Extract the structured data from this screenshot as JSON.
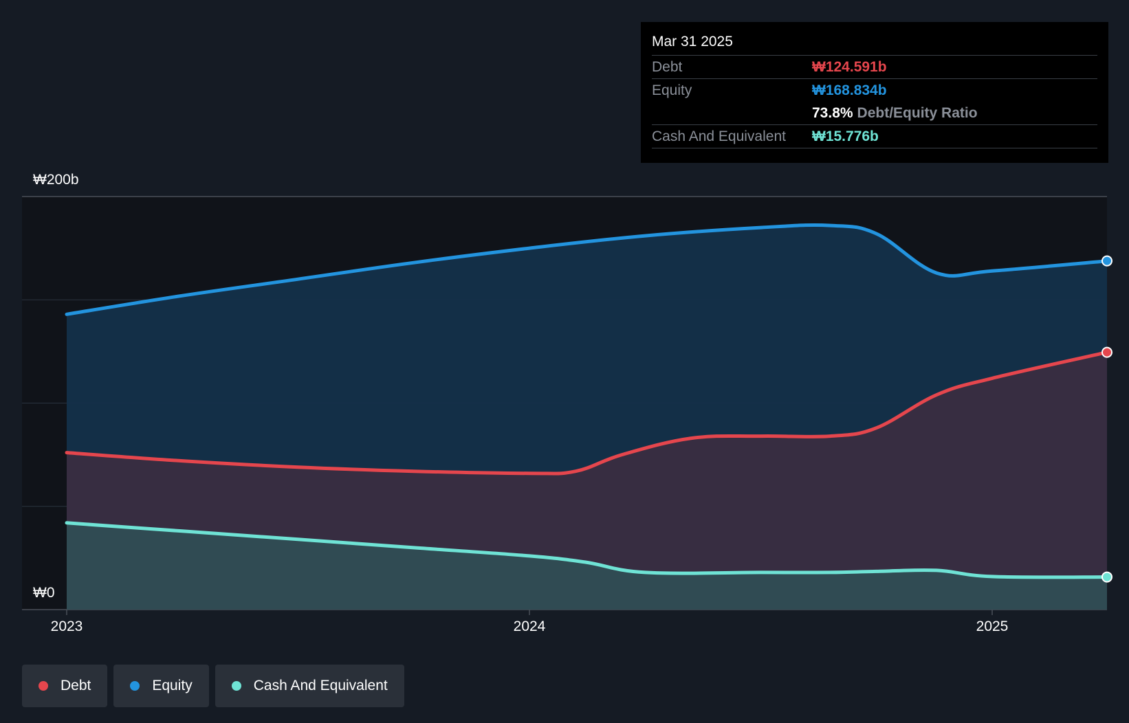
{
  "tooltip": {
    "date": "Mar 31 2025",
    "rows": [
      {
        "label": "Debt",
        "value": "₩124.591b",
        "color": "#e5464d"
      },
      {
        "label": "Equity",
        "value": "₩168.834b",
        "color": "#2394df"
      }
    ],
    "ratio_value": "73.8%",
    "ratio_label": "Debt/Equity Ratio",
    "cash_label": "Cash And Equivalent",
    "cash_value": "₩15.776b",
    "cash_color": "#6fe3d5"
  },
  "axis": {
    "y_top_label": "₩200b",
    "y_bottom_label": "₩0",
    "x_labels": [
      {
        "label": "2023",
        "t": 2023.0
      },
      {
        "label": "2024",
        "t": 2024.0
      },
      {
        "label": "2025",
        "t": 2025.0
      }
    ]
  },
  "legend": [
    {
      "label": "Debt",
      "color": "#e5464d"
    },
    {
      "label": "Equity",
      "color": "#2394df"
    },
    {
      "label": "Cash And Equivalent",
      "color": "#6fe3d5"
    }
  ],
  "chart_data": {
    "type": "area",
    "title": "",
    "xlabel": "",
    "ylabel": "",
    "ylim": [
      0,
      200
    ],
    "xlim": [
      2022.9,
      2025.25
    ],
    "grid": true,
    "y_unit": "₩b",
    "series": [
      {
        "name": "Equity",
        "color": "#2394df",
        "fill": "#14304a",
        "x": [
          2023.0,
          2023.25,
          2023.5,
          2023.75,
          2024.0,
          2024.25,
          2024.5,
          2024.65,
          2024.75,
          2024.88,
          2025.0,
          2025.25
        ],
        "y": [
          143,
          152,
          160,
          168,
          175,
          181,
          185,
          186,
          182,
          163,
          164,
          168.834
        ]
      },
      {
        "name": "Debt",
        "color": "#e5464d",
        "fill": "#392d41",
        "x": [
          2023.0,
          2023.25,
          2023.5,
          2023.75,
          2024.0,
          2024.1,
          2024.2,
          2024.35,
          2024.5,
          2024.65,
          2024.75,
          2024.88,
          2025.0,
          2025.25
        ],
        "y": [
          76,
          72,
          69,
          67,
          66,
          67,
          75,
          83,
          84,
          84,
          88,
          104,
          112,
          124.591
        ]
      },
      {
        "name": "Cash And Equivalent",
        "color": "#6fe3d5",
        "fill": "#2f4d54",
        "x": [
          2023.0,
          2023.25,
          2023.5,
          2023.75,
          2024.0,
          2024.12,
          2024.25,
          2024.5,
          2024.65,
          2024.75,
          2024.88,
          2025.0,
          2025.25
        ],
        "y": [
          42,
          38,
          34,
          30,
          26,
          23,
          18,
          18,
          18,
          18.5,
          19,
          16,
          15.776
        ]
      }
    ]
  }
}
